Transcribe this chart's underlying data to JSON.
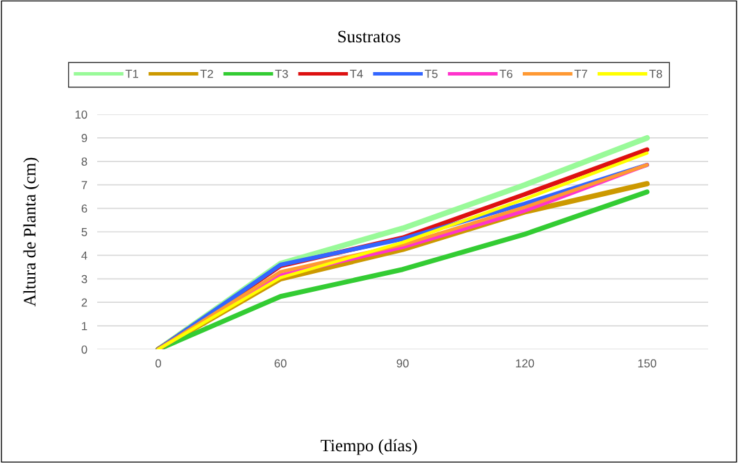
{
  "chart_data": {
    "type": "line",
    "title": "Sustratos",
    "xlabel": "Tiempo (días)",
    "ylabel": "Altura de Planta (cm)",
    "categories": [
      "0",
      "60",
      "90",
      "120",
      "150"
    ],
    "series": [
      {
        "name": "T1",
        "color": "#99fa99",
        "values": [
          0,
          3.65,
          5.15,
          7.0,
          9.0
        ]
      },
      {
        "name": "T2",
        "color": "#cc9900",
        "values": [
          0,
          3.0,
          4.25,
          5.85,
          7.05
        ]
      },
      {
        "name": "T3",
        "color": "#33cc33",
        "values": [
          0,
          2.25,
          3.4,
          4.9,
          6.7
        ]
      },
      {
        "name": "T4",
        "color": "#dd1111",
        "values": [
          0,
          3.55,
          4.75,
          6.6,
          8.5
        ]
      },
      {
        "name": "T5",
        "color": "#3366ff",
        "values": [
          0,
          3.6,
          4.7,
          6.2,
          7.85
        ]
      },
      {
        "name": "T6",
        "color": "#ff33cc",
        "values": [
          0,
          3.15,
          4.35,
          5.9,
          7.85
        ]
      },
      {
        "name": "T7",
        "color": "#ff9933",
        "values": [
          0,
          3.3,
          4.45,
          6.05,
          7.85
        ]
      },
      {
        "name": "T8",
        "color": "#ffff00",
        "values": [
          0,
          3.05,
          4.55,
          6.4,
          8.35
        ]
      }
    ],
    "ylim": [
      0,
      10
    ],
    "yticks": [
      0,
      1,
      2,
      3,
      4,
      5,
      6,
      7,
      8,
      9,
      10
    ],
    "grid": "y",
    "legend": "top",
    "marker": "none",
    "line_style": "solid"
  }
}
